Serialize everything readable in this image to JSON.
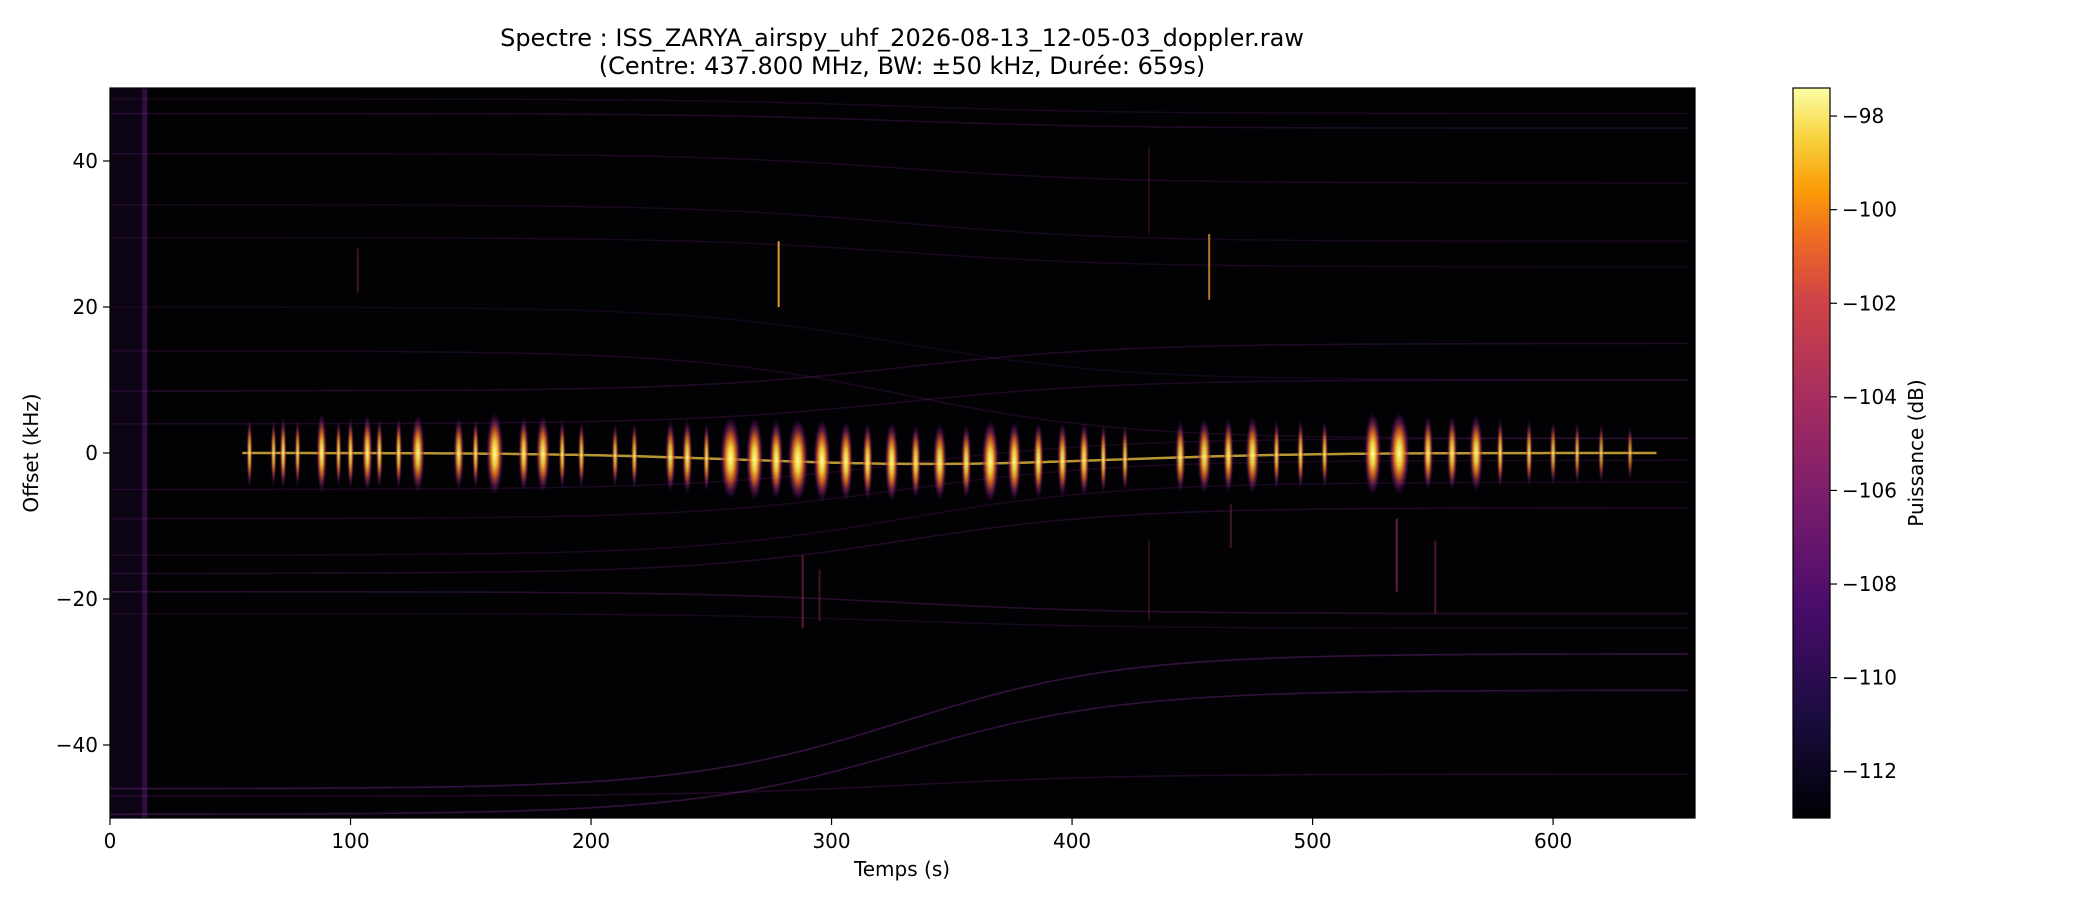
{
  "chart_data": {
    "type": "heatmap",
    "title": "Spectre : ISS_ZARYA_airspy_uhf_2026-08-13_12-05-03_doppler.raw",
    "subtitle": "(Centre: 437.800 MHz, BW: ±50 kHz, Durée: 659s)",
    "xlabel": "Temps (s)",
    "ylabel": "Offset (kHz)",
    "xlim": [
      0,
      659
    ],
    "ylim": [
      -50,
      50
    ],
    "x_ticks": [
      0,
      100,
      200,
      300,
      400,
      500,
      600
    ],
    "y_ticks": [
      -40,
      -20,
      0,
      20,
      40
    ],
    "colorbar": {
      "label": "Puissance (dB)",
      "range": [
        -113,
        -97.4
      ],
      "ticks": [
        -112,
        -110,
        -108,
        -106,
        -104,
        -102,
        -100,
        -98
      ],
      "colormap": "inferno"
    },
    "signal_bursts": [
      {
        "t": 58,
        "w": 1.5,
        "p": 0.75
      },
      {
        "t": 68,
        "w": 1.5,
        "p": 0.7
      },
      {
        "t": 72,
        "w": 2,
        "p": 0.8
      },
      {
        "t": 78,
        "w": 1.5,
        "p": 0.7
      },
      {
        "t": 88,
        "w": 3,
        "p": 0.95
      },
      {
        "t": 95,
        "w": 1.5,
        "p": 0.7
      },
      {
        "t": 100,
        "w": 2,
        "p": 0.8
      },
      {
        "t": 107,
        "w": 3,
        "p": 0.9
      },
      {
        "t": 112,
        "w": 2,
        "p": 0.75
      },
      {
        "t": 120,
        "w": 2,
        "p": 0.8
      },
      {
        "t": 128,
        "w": 4,
        "p": 0.9
      },
      {
        "t": 145,
        "w": 3,
        "p": 0.8
      },
      {
        "t": 152,
        "w": 2,
        "p": 0.75
      },
      {
        "t": 160,
        "w": 5,
        "p": 1.0
      },
      {
        "t": 172,
        "w": 3,
        "p": 0.85
      },
      {
        "t": 180,
        "w": 4,
        "p": 0.9
      },
      {
        "t": 188,
        "w": 2,
        "p": 0.75
      },
      {
        "t": 196,
        "w": 2,
        "p": 0.7
      },
      {
        "t": 210,
        "w": 2,
        "p": 0.65
      },
      {
        "t": 218,
        "w": 2,
        "p": 0.7
      },
      {
        "t": 233,
        "w": 3,
        "p": 0.8
      },
      {
        "t": 240,
        "w": 3,
        "p": 0.85
      },
      {
        "t": 248,
        "w": 2,
        "p": 0.75
      },
      {
        "t": 258,
        "w": 6,
        "p": 1.0
      },
      {
        "t": 268,
        "w": 5,
        "p": 1.0
      },
      {
        "t": 277,
        "w": 4,
        "p": 0.95
      },
      {
        "t": 286,
        "w": 6,
        "p": 1.0
      },
      {
        "t": 296,
        "w": 5,
        "p": 1.0
      },
      {
        "t": 306,
        "w": 4,
        "p": 0.95
      },
      {
        "t": 315,
        "w": 3,
        "p": 0.9
      },
      {
        "t": 325,
        "w": 4,
        "p": 0.95
      },
      {
        "t": 335,
        "w": 3,
        "p": 0.85
      },
      {
        "t": 345,
        "w": 4,
        "p": 0.9
      },
      {
        "t": 356,
        "w": 3,
        "p": 0.85
      },
      {
        "t": 366,
        "w": 5,
        "p": 1.0
      },
      {
        "t": 376,
        "w": 4,
        "p": 0.95
      },
      {
        "t": 386,
        "w": 3,
        "p": 0.9
      },
      {
        "t": 396,
        "w": 3,
        "p": 0.85
      },
      {
        "t": 405,
        "w": 3,
        "p": 0.85
      },
      {
        "t": 413,
        "w": 2,
        "p": 0.75
      },
      {
        "t": 422,
        "w": 2,
        "p": 0.7
      },
      {
        "t": 445,
        "w": 3,
        "p": 0.8
      },
      {
        "t": 455,
        "w": 4,
        "p": 0.85
      },
      {
        "t": 465,
        "w": 3,
        "p": 0.85
      },
      {
        "t": 475,
        "w": 4,
        "p": 0.9
      },
      {
        "t": 485,
        "w": 2,
        "p": 0.75
      },
      {
        "t": 495,
        "w": 2,
        "p": 0.75
      },
      {
        "t": 505,
        "w": 2,
        "p": 0.7
      },
      {
        "t": 525,
        "w": 5,
        "p": 1.0
      },
      {
        "t": 536,
        "w": 6,
        "p": 1.0
      },
      {
        "t": 548,
        "w": 3,
        "p": 0.85
      },
      {
        "t": 558,
        "w": 3,
        "p": 0.85
      },
      {
        "t": 568,
        "w": 4,
        "p": 0.9
      },
      {
        "t": 578,
        "w": 2,
        "p": 0.75
      },
      {
        "t": 590,
        "w": 2,
        "p": 0.7
      },
      {
        "t": 600,
        "w": 2,
        "p": 0.65
      },
      {
        "t": 610,
        "w": 1.5,
        "p": 0.6
      },
      {
        "t": 620,
        "w": 1.5,
        "p": 0.55
      },
      {
        "t": 632,
        "w": 1.5,
        "p": 0.45
      }
    ],
    "doppler_lines": [
      {
        "y0": 48.5,
        "shift": -2,
        "p": 0.18
      },
      {
        "y0": 46.5,
        "shift": -2,
        "p": 0.25
      },
      {
        "y0": 41,
        "shift": -4,
        "p": 0.2
      },
      {
        "y0": 34,
        "shift": -5,
        "p": 0.18
      },
      {
        "y0": 29.5,
        "shift": -4,
        "p": 0.18
      },
      {
        "y0": 20,
        "shift": -10,
        "p": 0.15
      },
      {
        "y0": 14,
        "shift": -12,
        "p": 0.2
      },
      {
        "y0": 8.5,
        "shift": 6.5,
        "p": 0.25
      },
      {
        "y0": 4,
        "shift": 6,
        "p": 0.22
      },
      {
        "y0": -5,
        "shift": 7,
        "p": 0.2
      },
      {
        "y0": -9,
        "shift": 8,
        "p": 0.2
      },
      {
        "y0": -14,
        "shift": 10,
        "p": 0.2
      },
      {
        "y0": -16.5,
        "shift": 9,
        "p": 0.25
      },
      {
        "y0": -19,
        "shift": -3,
        "p": 0.3
      },
      {
        "y0": -22,
        "shift": -2,
        "p": 0.18
      },
      {
        "y0": -46,
        "shift": 18.5,
        "p": 0.42
      },
      {
        "y0": -49.5,
        "shift": 17,
        "p": 0.4
      },
      {
        "y0": -47,
        "shift": 3,
        "p": 0.25
      }
    ],
    "spikes": [
      {
        "t": 278,
        "y1": 20,
        "y2": 29,
        "p": 0.9
      },
      {
        "t": 457,
        "y1": 21,
        "y2": 30,
        "p": 0.7
      },
      {
        "t": 103,
        "y1": 22,
        "y2": 28,
        "p": 0.35
      },
      {
        "t": 535,
        "y1": -19,
        "y2": -9,
        "p": 0.55
      },
      {
        "t": 551,
        "y1": -22,
        "y2": -12,
        "p": 0.4
      },
      {
        "t": 288,
        "y1": -24,
        "y2": -14,
        "p": 0.45
      },
      {
        "t": 295,
        "y1": -23,
        "y2": -16,
        "p": 0.35
      },
      {
        "t": 432,
        "y1": -23,
        "y2": -12,
        "p": 0.25
      },
      {
        "t": 432,
        "y1": 30,
        "y2": 42,
        "p": 0.2
      },
      {
        "t": 466,
        "y1": -13,
        "y2": -7,
        "p": 0.35
      }
    ]
  }
}
